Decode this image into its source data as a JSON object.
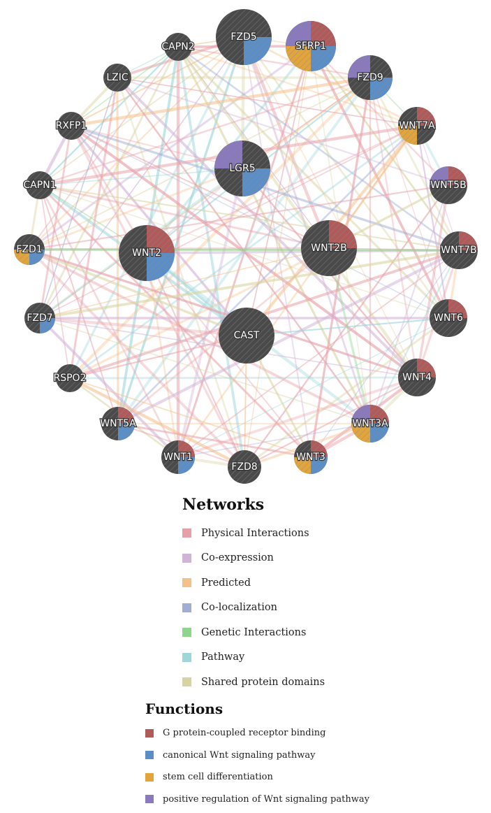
{
  "network": {
    "nodes": [
      {
        "label": "FZD5",
        "slices": [
          "blue"
        ]
      },
      {
        "label": "SFRP1",
        "slices": [
          "purple",
          "red",
          "orange",
          "blue"
        ]
      },
      {
        "label": "CAPN2",
        "slices": []
      },
      {
        "label": "FZD9",
        "slices": [
          "purple",
          "blue"
        ]
      },
      {
        "label": "LZIC",
        "slices": []
      },
      {
        "label": "RXFP1",
        "slices": []
      },
      {
        "label": "WNT7A",
        "slices": [
          "red",
          "orange"
        ]
      },
      {
        "label": "LGR5",
        "slices": [
          "purple",
          "blue"
        ]
      },
      {
        "label": "CAPN1",
        "slices": []
      },
      {
        "label": "WNT5B",
        "slices": [
          "purple",
          "red"
        ]
      },
      {
        "label": "WNT2",
        "slices": [
          "red",
          "blue"
        ]
      },
      {
        "label": "WNT2B",
        "slices": [
          "red"
        ]
      },
      {
        "label": "FZD1",
        "slices": [
          "orange",
          "blue"
        ]
      },
      {
        "label": "WNT7B",
        "slices": [
          "red"
        ]
      },
      {
        "label": "FZD7",
        "slices": [
          "blue"
        ]
      },
      {
        "label": "WNT6",
        "slices": [
          "red"
        ]
      },
      {
        "label": "CAST",
        "slices": []
      },
      {
        "label": "RSPO2",
        "slices": []
      },
      {
        "label": "WNT4",
        "slices": [
          "red"
        ]
      },
      {
        "label": "WNT5A",
        "slices": [
          "red",
          "blue"
        ]
      },
      {
        "label": "WNT3A",
        "slices": [
          "purple",
          "red",
          "orange",
          "blue"
        ]
      },
      {
        "label": "WNT1",
        "slices": [
          "red",
          "blue"
        ]
      },
      {
        "label": "WNT3",
        "slices": [
          "red",
          "orange",
          "blue"
        ]
      },
      {
        "label": "FZD8",
        "slices": []
      }
    ],
    "node_fill": "#4a4a4a",
    "edge_types": [
      "physical",
      "co-expression",
      "predicted",
      "co-localization",
      "genetic",
      "pathway",
      "shared-domains"
    ]
  },
  "legend": {
    "networks_title": "Networks",
    "networks": [
      {
        "label": "Physical Interactions",
        "color": "#e8a0a8"
      },
      {
        "label": "Co-expression",
        "color": "#d1b3d7"
      },
      {
        "label": "Predicted",
        "color": "#f5c08a"
      },
      {
        "label": "Co-localization",
        "color": "#a0aed6"
      },
      {
        "label": "Genetic Interactions",
        "color": "#8ed68e"
      },
      {
        "label": "Pathway",
        "color": "#9ed6da"
      },
      {
        "label": "Shared protein domains",
        "color": "#d8d4a0"
      }
    ],
    "functions_title": "Functions",
    "functions": [
      {
        "label": "G protein-coupled receptor binding",
        "color": "#b05a5a"
      },
      {
        "label": "canonical Wnt signaling pathway",
        "color": "#5b8ec6"
      },
      {
        "label": "stem cell differentiation",
        "color": "#e2a43c"
      },
      {
        "label": "positive regulation of Wnt signaling pathway",
        "color": "#8a79bd"
      }
    ]
  }
}
